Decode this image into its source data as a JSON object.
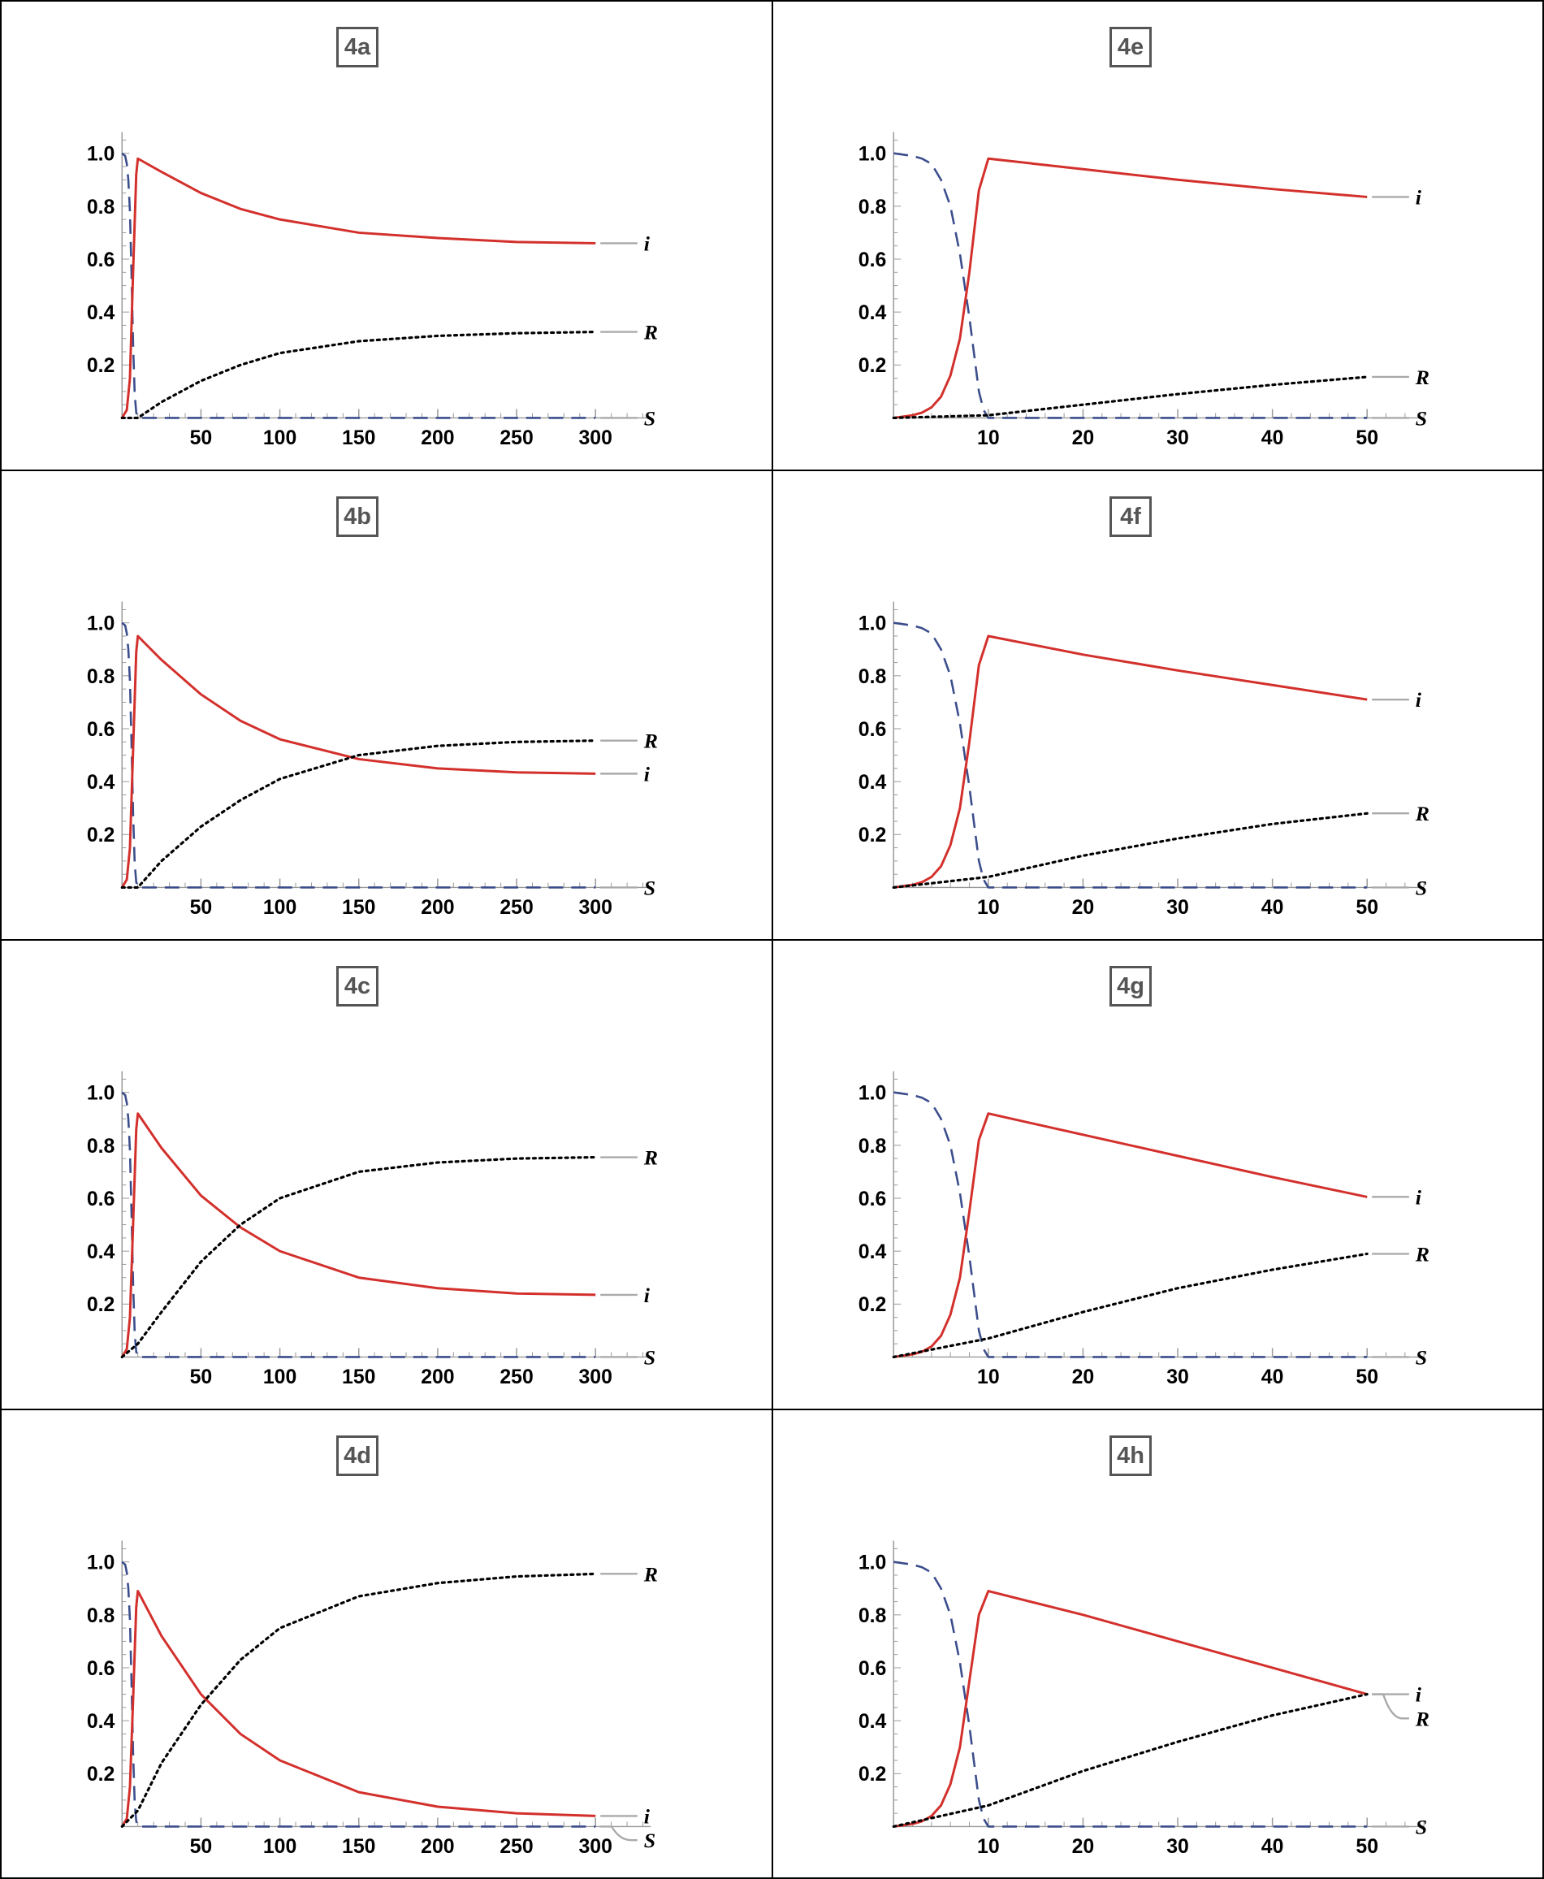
{
  "chart_data": [
    {
      "id": "4a",
      "label": "4a",
      "type": "line",
      "x_ticks": [
        50,
        100,
        150,
        200,
        250,
        300
      ],
      "y_ticks": [
        0.2,
        0.4,
        0.6,
        0.8,
        1.0
      ],
      "y_tick_labels": [
        "0.2",
        "0.4",
        "0.6",
        "0.8",
        "1.0"
      ],
      "xlim": [
        0,
        335
      ],
      "ylim": [
        0,
        1.08
      ],
      "series": [
        {
          "key": "S",
          "label": "S",
          "style": "dashed",
          "color": "#3b4d8c",
          "x": [
            0,
            2,
            3,
            4,
            5,
            6,
            7,
            8,
            9,
            10,
            300
          ],
          "y": [
            1.0,
            0.99,
            0.96,
            0.9,
            0.78,
            0.55,
            0.28,
            0.09,
            0.02,
            0.0,
            0.0
          ]
        },
        {
          "key": "i",
          "label": "i",
          "style": "solid",
          "color": "#d3302c",
          "x": [
            0,
            3,
            5,
            7,
            9,
            10,
            25,
            50,
            75,
            100,
            150,
            200,
            250,
            300
          ],
          "y": [
            0.0,
            0.03,
            0.15,
            0.55,
            0.92,
            0.98,
            0.93,
            0.85,
            0.79,
            0.75,
            0.7,
            0.68,
            0.665,
            0.66
          ]
        },
        {
          "key": "R",
          "label": "R",
          "style": "dotted",
          "color": "#000000",
          "x": [
            0,
            10,
            25,
            50,
            75,
            100,
            150,
            200,
            250,
            300
          ],
          "y": [
            0.0,
            0.0,
            0.06,
            0.14,
            0.2,
            0.245,
            0.29,
            0.31,
            0.32,
            0.325
          ]
        }
      ]
    },
    {
      "id": "4b",
      "label": "4b",
      "type": "line",
      "x_ticks": [
        50,
        100,
        150,
        200,
        250,
        300
      ],
      "y_ticks": [
        0.2,
        0.4,
        0.6,
        0.8,
        1.0
      ],
      "y_tick_labels": [
        "0.2",
        "0.4",
        "0.6",
        "0.8",
        "1.0"
      ],
      "xlim": [
        0,
        335
      ],
      "ylim": [
        0,
        1.08
      ],
      "series": [
        {
          "key": "S",
          "label": "S",
          "style": "dashed",
          "color": "#3b4d8c",
          "x": [
            0,
            2,
            3,
            4,
            5,
            6,
            7,
            8,
            9,
            10,
            300
          ],
          "y": [
            1.0,
            0.99,
            0.96,
            0.9,
            0.78,
            0.55,
            0.28,
            0.09,
            0.02,
            0.0,
            0.0
          ]
        },
        {
          "key": "i",
          "label": "i",
          "style": "solid",
          "color": "#d3302c",
          "x": [
            0,
            3,
            5,
            7,
            9,
            10,
            25,
            50,
            75,
            100,
            150,
            200,
            250,
            300
          ],
          "y": [
            0.0,
            0.03,
            0.15,
            0.52,
            0.89,
            0.95,
            0.86,
            0.73,
            0.63,
            0.56,
            0.485,
            0.45,
            0.435,
            0.43
          ]
        },
        {
          "key": "R",
          "label": "R",
          "style": "dotted",
          "color": "#000000",
          "x": [
            0,
            10,
            25,
            50,
            75,
            100,
            150,
            200,
            250,
            300
          ],
          "y": [
            0.0,
            0.0,
            0.1,
            0.23,
            0.33,
            0.41,
            0.5,
            0.535,
            0.55,
            0.555
          ]
        }
      ]
    },
    {
      "id": "4c",
      "label": "4c",
      "type": "line",
      "x_ticks": [
        50,
        100,
        150,
        200,
        250,
        300
      ],
      "y_ticks": [
        0.2,
        0.4,
        0.6,
        0.8,
        1.0
      ],
      "y_tick_labels": [
        "0.2",
        "0.4",
        "0.6",
        "0.8",
        "1.0"
      ],
      "xlim": [
        0,
        335
      ],
      "ylim": [
        0,
        1.08
      ],
      "series": [
        {
          "key": "S",
          "label": "S",
          "style": "dashed",
          "color": "#3b4d8c",
          "x": [
            0,
            2,
            3,
            4,
            5,
            6,
            7,
            8,
            9,
            10,
            300
          ],
          "y": [
            1.0,
            0.99,
            0.96,
            0.9,
            0.78,
            0.55,
            0.28,
            0.09,
            0.02,
            0.0,
            0.0
          ]
        },
        {
          "key": "i",
          "label": "i",
          "style": "solid",
          "color": "#d3302c",
          "x": [
            0,
            3,
            5,
            7,
            9,
            10,
            25,
            50,
            75,
            100,
            150,
            200,
            250,
            300
          ],
          "y": [
            0.0,
            0.03,
            0.15,
            0.5,
            0.86,
            0.92,
            0.79,
            0.61,
            0.49,
            0.4,
            0.3,
            0.26,
            0.24,
            0.235
          ]
        },
        {
          "key": "R",
          "label": "R",
          "style": "dotted",
          "color": "#000000",
          "x": [
            0,
            10,
            25,
            50,
            75,
            100,
            150,
            200,
            250,
            300
          ],
          "y": [
            0.0,
            0.05,
            0.17,
            0.36,
            0.5,
            0.6,
            0.7,
            0.735,
            0.75,
            0.755
          ]
        }
      ]
    },
    {
      "id": "4d",
      "label": "4d",
      "type": "line",
      "x_ticks": [
        50,
        100,
        150,
        200,
        250,
        300
      ],
      "y_ticks": [
        0.2,
        0.4,
        0.6,
        0.8,
        1.0
      ],
      "y_tick_labels": [
        "0.2",
        "0.4",
        "0.6",
        "0.8",
        "1.0"
      ],
      "xlim": [
        0,
        335
      ],
      "ylim": [
        0,
        1.08
      ],
      "series": [
        {
          "key": "S",
          "label": "S",
          "style": "dashed",
          "color": "#3b4d8c",
          "x": [
            0,
            2,
            3,
            4,
            5,
            6,
            7,
            8,
            9,
            10,
            300
          ],
          "y": [
            1.0,
            0.99,
            0.96,
            0.9,
            0.78,
            0.55,
            0.28,
            0.09,
            0.02,
            0.0,
            0.0
          ]
        },
        {
          "key": "i",
          "label": "i",
          "style": "solid",
          "color": "#d3302c",
          "x": [
            0,
            3,
            5,
            7,
            9,
            10,
            25,
            50,
            75,
            100,
            150,
            200,
            250,
            300
          ],
          "y": [
            0.0,
            0.03,
            0.15,
            0.48,
            0.83,
            0.89,
            0.72,
            0.5,
            0.35,
            0.25,
            0.13,
            0.075,
            0.05,
            0.04
          ]
        },
        {
          "key": "R",
          "label": "R",
          "style": "dotted",
          "color": "#000000",
          "x": [
            0,
            10,
            25,
            50,
            75,
            100,
            150,
            200,
            250,
            300
          ],
          "y": [
            0.0,
            0.06,
            0.24,
            0.46,
            0.63,
            0.75,
            0.87,
            0.92,
            0.945,
            0.955
          ]
        }
      ]
    },
    {
      "id": "4e",
      "label": "4e",
      "type": "line",
      "x_ticks": [
        10,
        20,
        30,
        40,
        50
      ],
      "y_ticks": [
        0.2,
        0.4,
        0.6,
        0.8,
        1.0
      ],
      "y_tick_labels": [
        "0.2",
        "0.4",
        "0.6",
        "0.8",
        "1.0"
      ],
      "xlim": [
        0,
        56
      ],
      "ylim": [
        0,
        1.08
      ],
      "series": [
        {
          "key": "S",
          "label": "S",
          "style": "dashed",
          "color": "#3b4d8c",
          "x": [
            0,
            2,
            3,
            4,
            5,
            6,
            7,
            8,
            9,
            9.5,
            10,
            50
          ],
          "y": [
            1.0,
            0.99,
            0.98,
            0.96,
            0.9,
            0.8,
            0.62,
            0.38,
            0.1,
            0.03,
            0.0,
            0.0
          ]
        },
        {
          "key": "i",
          "label": "i",
          "style": "solid",
          "color": "#d3302c",
          "x": [
            0,
            2,
            3,
            4,
            5,
            6,
            7,
            8,
            9,
            10,
            20,
            30,
            40,
            50
          ],
          "y": [
            0.0,
            0.01,
            0.02,
            0.04,
            0.08,
            0.16,
            0.3,
            0.55,
            0.86,
            0.98,
            0.94,
            0.9,
            0.865,
            0.835
          ]
        },
        {
          "key": "R",
          "label": "R",
          "style": "dotted",
          "color": "#000000",
          "x": [
            0,
            10,
            20,
            30,
            40,
            50
          ],
          "y": [
            0.0,
            0.01,
            0.05,
            0.09,
            0.125,
            0.155
          ]
        }
      ]
    },
    {
      "id": "4f",
      "label": "4f",
      "type": "line",
      "x_ticks": [
        10,
        20,
        30,
        40,
        50
      ],
      "y_ticks": [
        0.2,
        0.4,
        0.6,
        0.8,
        1.0
      ],
      "y_tick_labels": [
        "0.2",
        "0.4",
        "0.6",
        "0.8",
        "1.0"
      ],
      "xlim": [
        0,
        56
      ],
      "ylim": [
        0,
        1.08
      ],
      "series": [
        {
          "key": "S",
          "label": "S",
          "style": "dashed",
          "color": "#3b4d8c",
          "x": [
            0,
            2,
            3,
            4,
            5,
            6,
            7,
            8,
            9,
            9.5,
            10,
            50
          ],
          "y": [
            1.0,
            0.99,
            0.98,
            0.96,
            0.9,
            0.8,
            0.62,
            0.38,
            0.1,
            0.03,
            0.0,
            0.0
          ]
        },
        {
          "key": "i",
          "label": "i",
          "style": "solid",
          "color": "#d3302c",
          "x": [
            0,
            2,
            3,
            4,
            5,
            6,
            7,
            8,
            9,
            10,
            20,
            30,
            40,
            50
          ],
          "y": [
            0.0,
            0.01,
            0.02,
            0.04,
            0.08,
            0.16,
            0.3,
            0.55,
            0.84,
            0.95,
            0.88,
            0.82,
            0.765,
            0.71
          ]
        },
        {
          "key": "R",
          "label": "R",
          "style": "dotted",
          "color": "#000000",
          "x": [
            0,
            10,
            20,
            30,
            40,
            50
          ],
          "y": [
            0.0,
            0.04,
            0.12,
            0.185,
            0.24,
            0.28
          ]
        }
      ]
    },
    {
      "id": "4g",
      "label": "4g",
      "type": "line",
      "x_ticks": [
        10,
        20,
        30,
        40,
        50
      ],
      "y_ticks": [
        0.2,
        0.4,
        0.6,
        0.8,
        1.0
      ],
      "y_tick_labels": [
        "0.2",
        "0.4",
        "0.6",
        "0.8",
        "1.0"
      ],
      "xlim": [
        0,
        56
      ],
      "ylim": [
        0,
        1.08
      ],
      "series": [
        {
          "key": "S",
          "label": "S",
          "style": "dashed",
          "color": "#3b4d8c",
          "x": [
            0,
            2,
            3,
            4,
            5,
            6,
            7,
            8,
            9,
            9.5,
            10,
            50
          ],
          "y": [
            1.0,
            0.99,
            0.98,
            0.96,
            0.9,
            0.8,
            0.62,
            0.38,
            0.1,
            0.03,
            0.0,
            0.0
          ]
        },
        {
          "key": "i",
          "label": "i",
          "style": "solid",
          "color": "#d3302c",
          "x": [
            0,
            2,
            3,
            4,
            5,
            6,
            7,
            8,
            9,
            10,
            20,
            30,
            40,
            50
          ],
          "y": [
            0.0,
            0.01,
            0.02,
            0.04,
            0.08,
            0.16,
            0.3,
            0.55,
            0.82,
            0.92,
            0.84,
            0.76,
            0.68,
            0.605
          ]
        },
        {
          "key": "R",
          "label": "R",
          "style": "dotted",
          "color": "#000000",
          "x": [
            0,
            10,
            20,
            30,
            40,
            50
          ],
          "y": [
            0.0,
            0.07,
            0.17,
            0.26,
            0.33,
            0.39
          ]
        }
      ]
    },
    {
      "id": "4h",
      "label": "4h",
      "type": "line",
      "x_ticks": [
        10,
        20,
        30,
        40,
        50
      ],
      "y_ticks": [
        0.2,
        0.4,
        0.6,
        0.8,
        1.0
      ],
      "y_tick_labels": [
        "0.2",
        "0.4",
        "0.6",
        "0.8",
        "1.0"
      ],
      "xlim": [
        0,
        56
      ],
      "ylim": [
        0,
        1.08
      ],
      "series": [
        {
          "key": "S",
          "label": "S",
          "style": "dashed",
          "color": "#3b4d8c",
          "x": [
            0,
            2,
            3,
            4,
            5,
            6,
            7,
            8,
            9,
            9.5,
            10,
            50
          ],
          "y": [
            1.0,
            0.99,
            0.98,
            0.96,
            0.9,
            0.8,
            0.62,
            0.38,
            0.1,
            0.03,
            0.0,
            0.0
          ]
        },
        {
          "key": "i",
          "label": "i",
          "style": "solid",
          "color": "#d3302c",
          "x": [
            0,
            2,
            3,
            4,
            5,
            6,
            7,
            8,
            9,
            10,
            20,
            30,
            40,
            50
          ],
          "y": [
            0.0,
            0.01,
            0.02,
            0.04,
            0.08,
            0.16,
            0.3,
            0.55,
            0.8,
            0.89,
            0.8,
            0.7,
            0.6,
            0.5
          ]
        },
        {
          "key": "R",
          "label": "R",
          "style": "dotted",
          "color": "#000000",
          "x": [
            0,
            10,
            20,
            30,
            40,
            50
          ],
          "y": [
            0.0,
            0.08,
            0.21,
            0.32,
            0.42,
            0.5
          ]
        }
      ]
    }
  ]
}
